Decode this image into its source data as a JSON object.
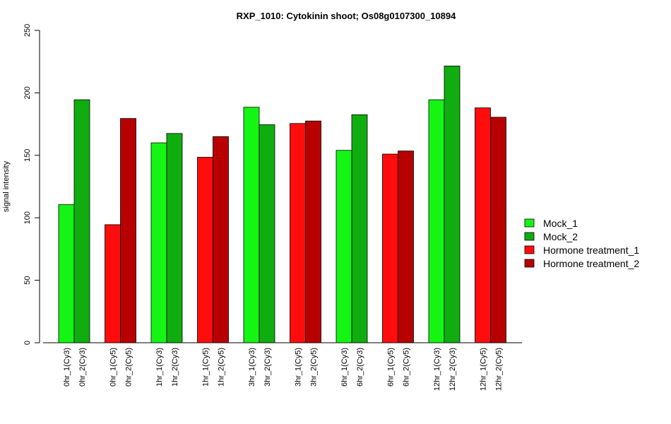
{
  "chart_data": {
    "type": "bar",
    "title": "RXP_1010: Cytokinin shoot; Os08g0107300_10894",
    "ylabel": "signal intensity",
    "xlabel": "",
    "ylim": [
      0,
      250
    ],
    "yticks": [
      0,
      50,
      100,
      150,
      200,
      250
    ],
    "grid": false,
    "legend_position": "right",
    "legend": [
      {
        "name": "Mock_1",
        "color": "#14f514"
      },
      {
        "name": "Mock_2",
        "color": "#0fad0f"
      },
      {
        "name": "Hormone treatment_1",
        "color": "#ff0d0d"
      },
      {
        "name": "Hormone treatment_2",
        "color": "#b80000"
      }
    ],
    "groups": [
      {
        "bars": [
          {
            "label": "0hr_1(Cy3)",
            "value": 110.5,
            "series": 0
          },
          {
            "label": "0hr_2(Cy3)",
            "value": 194.5,
            "series": 1
          }
        ]
      },
      {
        "bars": [
          {
            "label": "0hr_1(Cy5)",
            "value": 94.5,
            "series": 2
          },
          {
            "label": "0hr_2(Cy5)",
            "value": 179.5,
            "series": 3
          }
        ]
      },
      {
        "bars": [
          {
            "label": "1hr_1(Cy3)",
            "value": 160,
            "series": 0
          },
          {
            "label": "1hr_2(Cy3)",
            "value": 167.5,
            "series": 1
          }
        ]
      },
      {
        "bars": [
          {
            "label": "1hr_1(Cy5)",
            "value": 148.5,
            "series": 2
          },
          {
            "label": "1hr_2(Cy5)",
            "value": 165,
            "series": 3
          }
        ]
      },
      {
        "bars": [
          {
            "label": "3hr_1(Cy3)",
            "value": 188.5,
            "series": 0
          },
          {
            "label": "3hr_2(Cy3)",
            "value": 174.5,
            "series": 1
          }
        ]
      },
      {
        "bars": [
          {
            "label": "3hr_1(Cy5)",
            "value": 175.5,
            "series": 2
          },
          {
            "label": "3hr_2(Cy5)",
            "value": 177.5,
            "series": 3
          }
        ]
      },
      {
        "bars": [
          {
            "label": "6hr_1(Cy3)",
            "value": 154,
            "series": 0
          },
          {
            "label": "6hr_2(Cy3)",
            "value": 182.5,
            "series": 1
          }
        ]
      },
      {
        "bars": [
          {
            "label": "6hr_1(Cy5)",
            "value": 151,
            "series": 2
          },
          {
            "label": "6hr_2(Cy5)",
            "value": 153.5,
            "series": 3
          }
        ]
      },
      {
        "bars": [
          {
            "label": "12hr_1(Cy3)",
            "value": 194.5,
            "series": 0
          },
          {
            "label": "12hr_2(Cy3)",
            "value": 221.5,
            "series": 1
          }
        ]
      },
      {
        "bars": [
          {
            "label": "12hr_1(Cy5)",
            "value": 188,
            "series": 2
          },
          {
            "label": "12hr_2(Cy5)",
            "value": 180.5,
            "series": 3
          }
        ]
      }
    ]
  }
}
